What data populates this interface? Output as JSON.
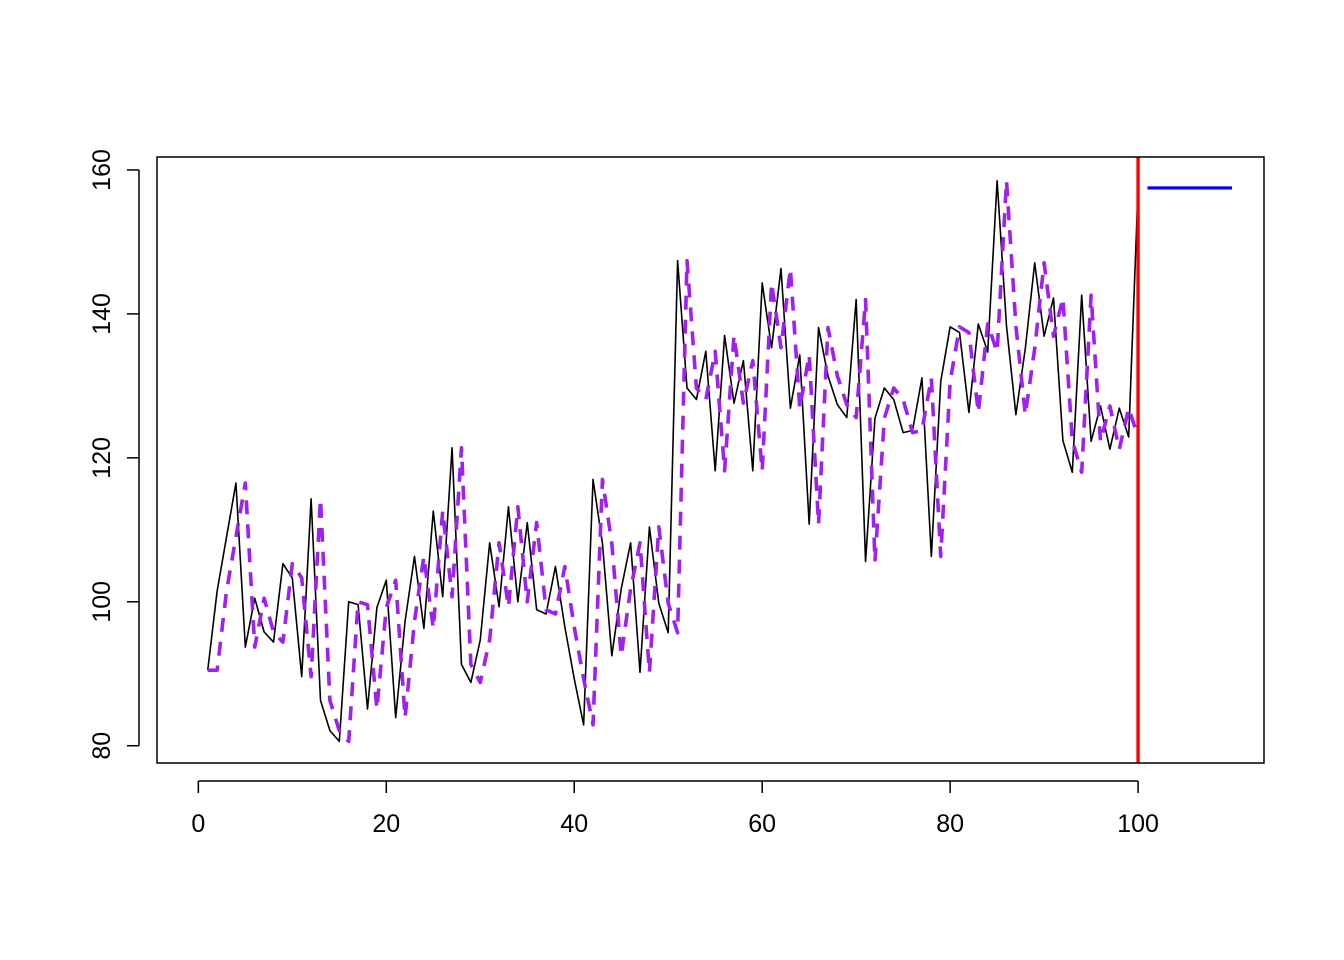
{
  "chart_data": {
    "type": "line",
    "title": "",
    "xlabel": "",
    "ylabel": "",
    "xlim": [
      -4.4,
      113.4
    ],
    "ylim": [
      77.6,
      161.8
    ],
    "x_ticks": [
      "0",
      "20",
      "40",
      "60",
      "80",
      "100"
    ],
    "y_ticks": [
      "80",
      "100",
      "120",
      "140",
      "160"
    ],
    "colors": {
      "observed": "#000000",
      "fitted": "#a020f0",
      "cutoff": "#ff0000",
      "forecast": "#0000ff"
    },
    "series": [
      {
        "key": "observed",
        "style": "solid",
        "x": [
          1,
          2,
          3,
          4,
          5,
          6,
          7,
          8,
          9,
          10,
          11,
          12,
          13,
          14,
          15,
          16,
          17,
          18,
          19,
          20,
          21,
          22,
          23,
          24,
          25,
          26,
          27,
          28,
          29,
          30,
          31,
          32,
          33,
          34,
          35,
          36,
          37,
          38,
          39,
          40,
          41,
          42,
          43,
          44,
          45,
          46,
          47,
          48,
          49,
          50,
          51,
          52,
          53,
          54,
          55,
          56,
          57,
          58,
          59,
          60,
          61,
          62,
          63,
          64,
          65,
          66,
          67,
          68,
          69,
          70,
          71,
          72,
          73,
          74,
          75,
          76,
          77,
          78,
          79,
          80,
          81,
          82,
          83,
          84,
          85,
          86,
          87,
          88,
          89,
          90,
          91,
          92,
          93,
          94,
          95,
          96,
          97,
          98,
          99,
          100
        ],
        "values": [
          90.5,
          101.5,
          109,
          116.5,
          93.7,
          100.5,
          95.8,
          94.4,
          105.3,
          103.3,
          89.6,
          114.3,
          86.3,
          82.1,
          80.6,
          100,
          99.6,
          85.1,
          99.2,
          103,
          83.9,
          97.3,
          106.3,
          96.3,
          112.6,
          100.7,
          121.4,
          91.3,
          88.8,
          94.7,
          108.2,
          99.3,
          113.2,
          100,
          111,
          98.9,
          98.3,
          104.9,
          96.5,
          89.3,
          82.9,
          117,
          108.1,
          92.5,
          101.8,
          108.2,
          90.2,
          110.4,
          99.8,
          95.7,
          147.4,
          129.7,
          128.1,
          134.8,
          118.2,
          137,
          127.6,
          133.5,
          118.2,
          144.3,
          135.3,
          146.3,
          126.9,
          134.3,
          110.8,
          138.1,
          131.4,
          127.4,
          125.6,
          142,
          105.6,
          125.5,
          129.7,
          128.1,
          123.5,
          123.8,
          131.1,
          106.3,
          130.6,
          138.2,
          137.4,
          126.3,
          138.6,
          134.7,
          158.5,
          138.3,
          126,
          135.2,
          147.1,
          136.9,
          142.2,
          122.4,
          118,
          142.6,
          122.3,
          127.2,
          121.2,
          126.9,
          122.9,
          157.5
        ]
      },
      {
        "key": "fitted",
        "style": "dashed",
        "x": [
          1,
          2,
          3,
          4,
          5,
          6,
          7,
          8,
          9,
          10,
          11,
          12,
          13,
          14,
          15,
          16,
          17,
          18,
          19,
          20,
          21,
          22,
          23,
          24,
          25,
          26,
          27,
          28,
          29,
          30,
          31,
          32,
          33,
          34,
          35,
          36,
          37,
          38,
          39,
          40,
          41,
          42,
          43,
          44,
          45,
          46,
          47,
          48,
          49,
          50,
          51,
          52,
          53,
          54,
          55,
          56,
          57,
          58,
          59,
          60,
          61,
          62,
          63,
          64,
          65,
          66,
          67,
          68,
          69,
          70,
          71,
          72,
          73,
          74,
          75,
          76,
          77,
          78,
          79,
          80,
          81,
          82,
          83,
          84,
          85,
          86,
          87,
          88,
          89,
          90,
          91,
          92,
          93,
          94,
          95,
          96,
          97,
          98,
          99,
          100
        ],
        "values": [
          90.5,
          90.5,
          101.5,
          109,
          116.5,
          93.7,
          100.5,
          95.8,
          94.4,
          105.3,
          103.3,
          89.6,
          114.3,
          86.3,
          82.1,
          80.6,
          100,
          99.6,
          85.1,
          99.2,
          103,
          83.9,
          97.3,
          106.3,
          96.3,
          112.6,
          100.7,
          121.4,
          91.3,
          88.8,
          94.7,
          108.2,
          99.3,
          113.2,
          100,
          111,
          98.9,
          98.3,
          104.9,
          96.5,
          89.3,
          82.9,
          117,
          108.1,
          92.5,
          101.8,
          108.2,
          90.2,
          110.4,
          99.8,
          95.7,
          147.4,
          129.7,
          128.1,
          134.8,
          118.2,
          137,
          127.6,
          133.5,
          118.2,
          144.3,
          135.3,
          146.3,
          126.9,
          134.3,
          110.8,
          138.1,
          131.4,
          127.4,
          125.6,
          142,
          105.6,
          125.5,
          129.7,
          128.1,
          123.5,
          123.8,
          131.1,
          106.3,
          130.6,
          138.2,
          137.4,
          126.3,
          138.6,
          134.7,
          158.5,
          138.3,
          126,
          135.2,
          147.1,
          136.9,
          142.2,
          122.4,
          118,
          142.6,
          122.3,
          127.2,
          121.2,
          126.9,
          122.9
        ]
      },
      {
        "key": "forecast",
        "style": "solid",
        "x": [
          101,
          110
        ],
        "values": [
          157.5,
          157.5
        ]
      }
    ],
    "vlines": [
      {
        "key": "cutoff",
        "x": 100
      }
    ],
    "grid": false,
    "legend": "none"
  }
}
